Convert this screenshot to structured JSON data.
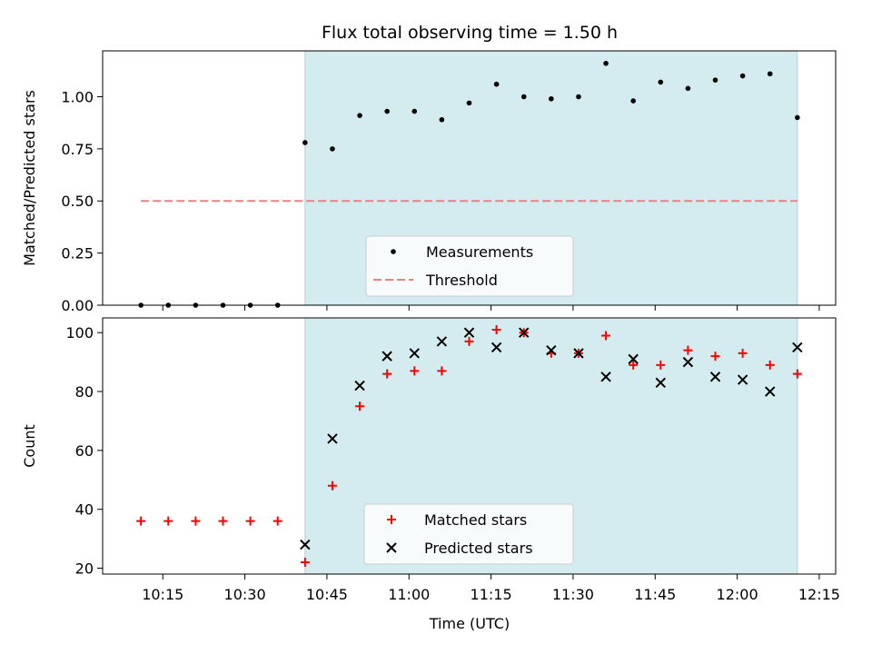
{
  "chart_data": [
    {
      "type": "scatter",
      "title": "Flux total observing time = 1.50 h",
      "xlabel": "",
      "ylabel": "Matched/Predicted stars",
      "ylim": [
        0,
        1.22
      ],
      "yticks": [
        "0.00",
        "0.25",
        "0.50",
        "0.75",
        "1.00"
      ],
      "xlim": [
        "10:04",
        "12:18"
      ],
      "shaded_interval": [
        "10:41",
        "12:11"
      ],
      "shade_color": "#d4ebf0",
      "legend_position": "lower-center",
      "series": [
        {
          "name": "Measurements",
          "marker": "dot",
          "color": "#000000",
          "x": [
            "10:11",
            "10:16",
            "10:21",
            "10:26",
            "10:31",
            "10:36",
            "10:41",
            "10:46",
            "10:51",
            "10:56",
            "11:01",
            "11:06",
            "11:11",
            "11:16",
            "11:21",
            "11:26",
            "11:31",
            "11:36",
            "11:41",
            "11:46",
            "11:51",
            "11:56",
            "12:01",
            "12:06",
            "12:11"
          ],
          "y": [
            0,
            0,
            0,
            0,
            0,
            0,
            0.78,
            0.75,
            0.91,
            0.93,
            0.93,
            0.89,
            0.97,
            1.06,
            1.0,
            0.99,
            1.0,
            1.16,
            0.98,
            1.07,
            1.04,
            1.08,
            1.1,
            1.11,
            0.9
          ]
        },
        {
          "name": "Threshold",
          "marker": "dashed-line",
          "color": "#f08080",
          "x": [
            "10:11",
            "12:11"
          ],
          "y": [
            0.5,
            0.5
          ]
        }
      ]
    },
    {
      "type": "scatter",
      "title": "",
      "xlabel": "Time (UTC)",
      "ylabel": "Count",
      "ylim": [
        18,
        105
      ],
      "yticks": [
        "20",
        "40",
        "60",
        "80",
        "100"
      ],
      "xlim": [
        "10:04",
        "12:18"
      ],
      "xticks": [
        "10:15",
        "10:30",
        "10:45",
        "11:00",
        "11:15",
        "11:30",
        "11:45",
        "12:00",
        "12:15"
      ],
      "shaded_interval": [
        "10:41",
        "12:11"
      ],
      "shade_color": "#d4ebf0",
      "legend_position": "lower-center",
      "series": [
        {
          "name": "Matched stars",
          "marker": "plus",
          "color": "#ff0000",
          "x": [
            "10:11",
            "10:16",
            "10:21",
            "10:26",
            "10:31",
            "10:36",
            "10:41",
            "10:46",
            "10:51",
            "10:56",
            "11:01",
            "11:06",
            "11:11",
            "11:16",
            "11:21",
            "11:26",
            "11:31",
            "11:36",
            "11:41",
            "11:46",
            "11:51",
            "11:56",
            "12:01",
            "12:06",
            "12:11"
          ],
          "y": [
            36,
            36,
            36,
            36,
            36,
            36,
            22,
            48,
            75,
            86,
            87,
            87,
            97,
            101,
            100,
            93,
            93,
            99,
            89,
            89,
            94,
            92,
            93,
            89,
            86
          ]
        },
        {
          "name": "Predicted stars",
          "marker": "x",
          "color": "#000000",
          "x": [
            "10:41",
            "10:46",
            "10:51",
            "10:56",
            "11:01",
            "11:06",
            "11:11",
            "11:16",
            "11:21",
            "11:26",
            "11:31",
            "11:36",
            "11:41",
            "11:46",
            "11:51",
            "11:56",
            "12:01",
            "12:06",
            "12:11"
          ],
          "y": [
            28,
            64,
            82,
            92,
            93,
            97,
            100,
            95,
            100,
            94,
            93,
            85,
            91,
            83,
            90,
            85,
            84,
            80,
            95
          ]
        }
      ]
    }
  ]
}
